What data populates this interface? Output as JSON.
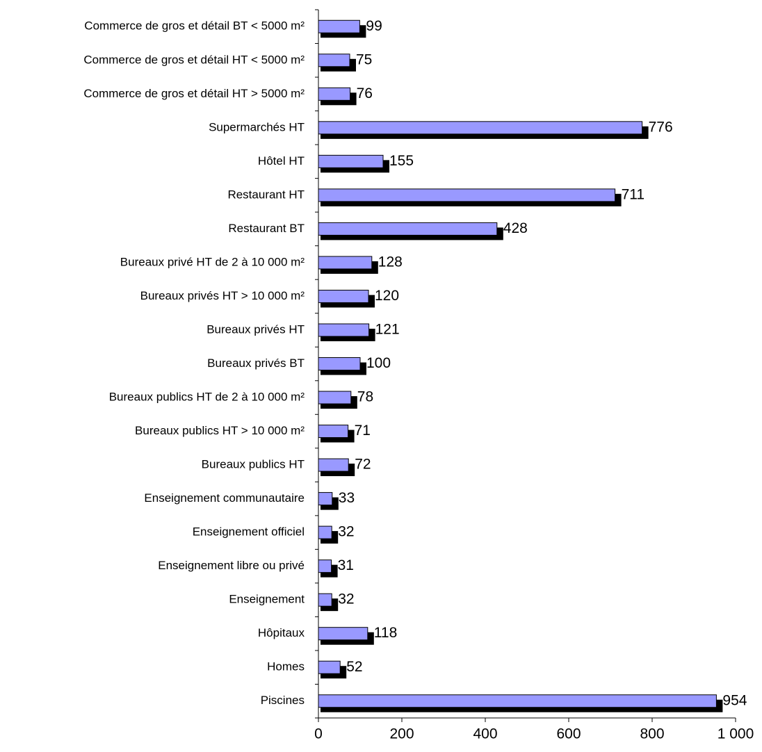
{
  "chart_data": {
    "type": "bar",
    "orientation": "horizontal",
    "categories": [
      "Commerce de gros et détail BT < 5000 m²",
      "Commerce de gros et détail HT < 5000 m²",
      "Commerce de gros et détail HT > 5000 m²",
      "Supermarchés HT",
      "Hôtel HT",
      "Restaurant HT",
      "Restaurant BT",
      "Bureaux privé HT de  2 à 10 000 m²",
      "Bureaux privés HT > 10 000 m²",
      "Bureaux privés HT",
      "Bureaux privés BT",
      "Bureaux publics HT de  2 à 10 000 m²",
      "Bureaux publics HT > 10 000 m²",
      "Bureaux publics HT",
      "Enseignement communautaire",
      "Enseignement officiel",
      "Enseignement libre ou privé",
      "Enseignement",
      "Hôpitaux",
      "Homes",
      "Piscines"
    ],
    "values": [
      99,
      75,
      76,
      776,
      155,
      711,
      428,
      128,
      120,
      121,
      100,
      78,
      71,
      72,
      33,
      32,
      31,
      32,
      118,
      52,
      954
    ],
    "color": "#9999ff",
    "shadow_color": "#000000",
    "xlim": [
      0,
      1000
    ],
    "xticks": [
      0,
      200,
      400,
      600,
      800,
      {
        "value": 1000,
        "label": "1 000"
      }
    ]
  }
}
